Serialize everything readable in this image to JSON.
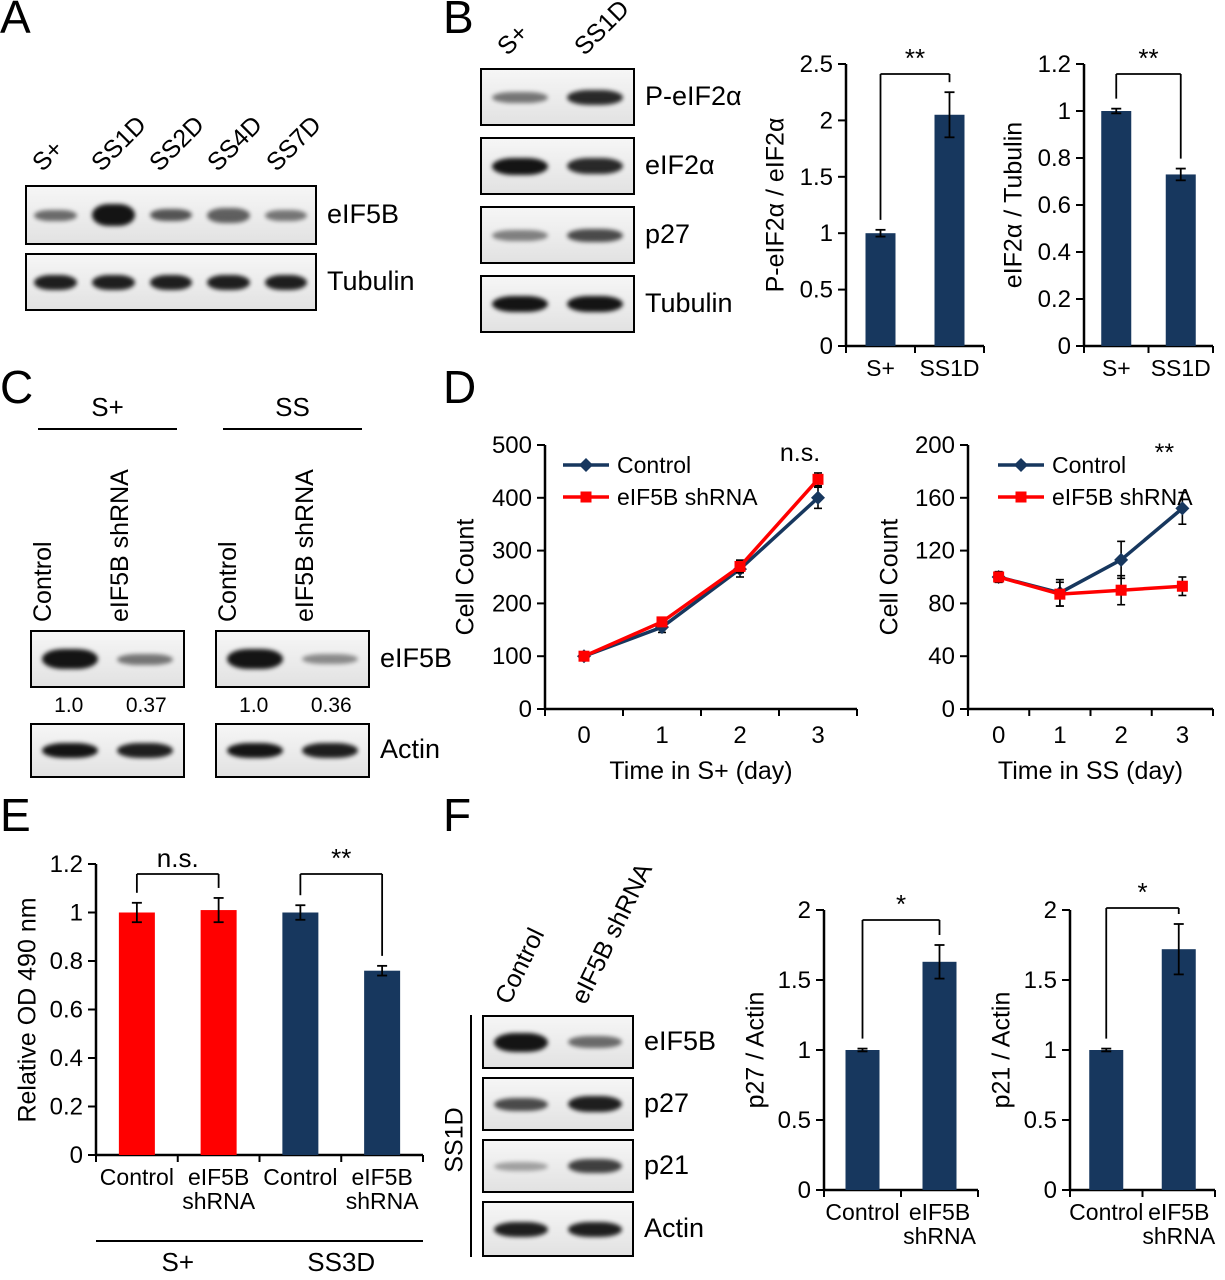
{
  "colors": {
    "navy": "#17375e",
    "red": "#ff0000",
    "black": "#000000"
  },
  "panels": {
    "A": {
      "letter": "A",
      "lanes": [
        "S+",
        "SS1D",
        "SS2D",
        "SS4D",
        "SS7D"
      ],
      "blots": [
        {
          "label": "eIF5B",
          "intensities": [
            0.6,
            1,
            0.7,
            0.65,
            0.55
          ],
          "heights": [
            11,
            22,
            12,
            15,
            11
          ]
        },
        {
          "label": "Tubulin",
          "intensities": [
            0.95,
            0.95,
            0.95,
            0.95,
            0.95
          ],
          "heights": [
            15,
            15,
            15,
            15,
            15
          ]
        }
      ]
    },
    "B": {
      "letter": "B",
      "lanes": [
        "S+",
        "SS1D"
      ],
      "blots": [
        {
          "label": "P-eIF2α",
          "intensities": [
            0.55,
            0.9
          ],
          "heights": [
            11,
            15
          ]
        },
        {
          "label": "eIF2α",
          "intensities": [
            1,
            0.9
          ],
          "heights": [
            17,
            16
          ]
        },
        {
          "label": "p27",
          "intensities": [
            0.5,
            0.75
          ],
          "heights": [
            11,
            13
          ]
        },
        {
          "label": "Tubulin",
          "intensities": [
            1,
            1
          ],
          "heights": [
            16,
            16
          ]
        }
      ]
    },
    "C": {
      "letter": "C",
      "blot_labels": [
        "eIF5B",
        "Actin"
      ],
      "groups": [
        {
          "title": "S+",
          "lanes": [
            "Control",
            "eIF5B shRNA"
          ],
          "quant": [
            "1.0",
            "0.37"
          ],
          "eif5b": {
            "label": "eIF5B",
            "intensities": [
              1,
              0.55
            ],
            "heights": [
              20,
              11
            ]
          },
          "actin": {
            "label": "Actin",
            "intensities": [
              1,
              0.95
            ],
            "heights": [
              15,
              15
            ]
          }
        },
        {
          "title": "SS",
          "lanes": [
            "Control",
            "eIF5B shRNA"
          ],
          "quant": [
            "1.0",
            "0.36"
          ],
          "eif5b": {
            "label": "eIF5B",
            "intensities": [
              1,
              0.45
            ],
            "heights": [
              20,
              10
            ]
          },
          "actin": {
            "label": "Actin",
            "intensities": [
              1,
              0.95
            ],
            "heights": [
              15,
              15
            ]
          }
        }
      ]
    },
    "D": {
      "letter": "D"
    },
    "E": {
      "letter": "E"
    },
    "F": {
      "letter": "F",
      "side_label": "SS1D",
      "lanes": [
        "Control",
        "eIF5B shRNA"
      ],
      "blots": [
        {
          "label": "eIF5B",
          "intensities": [
            1,
            0.6
          ],
          "heights": [
            19,
            12
          ]
        },
        {
          "label": "p27",
          "intensities": [
            0.75,
            0.95
          ],
          "heights": [
            13,
            16
          ]
        },
        {
          "label": "p21",
          "intensities": [
            0.35,
            0.8
          ],
          "heights": [
            9,
            14
          ]
        },
        {
          "label": "Actin",
          "intensities": [
            0.95,
            0.95
          ],
          "heights": [
            15,
            15
          ]
        }
      ]
    }
  },
  "chart_data": [
    {
      "id": "B1",
      "type": "bar",
      "categories": [
        "S+",
        "SS1D"
      ],
      "values": [
        1.0,
        2.05
      ],
      "errors": [
        0.03,
        0.2
      ],
      "ylabel": "P-eIF2α / eIF2α",
      "ylim": [
        0,
        2.5
      ],
      "yticks": [
        0,
        0.5,
        1,
        1.5,
        2,
        2.5
      ],
      "bar_color": "#17375e",
      "sigs": [
        {
          "label": "**",
          "a": 0,
          "b": 1
        }
      ]
    },
    {
      "id": "B2",
      "type": "bar",
      "categories": [
        "S+",
        "SS1D"
      ],
      "values": [
        1.0,
        0.73
      ],
      "errors": [
        0.01,
        0.025
      ],
      "ylabel": "eIF2α / Tubulin",
      "ylim": [
        0,
        1.2
      ],
      "yticks": [
        0,
        0.2,
        0.4,
        0.6,
        0.8,
        1,
        1.2
      ],
      "bar_color": "#17375e",
      "sigs": [
        {
          "label": "**",
          "a": 0,
          "b": 1
        }
      ]
    },
    {
      "id": "D1",
      "type": "line",
      "x": [
        0,
        1,
        2,
        3
      ],
      "xlabel": "Time in S+ (day)",
      "ylabel": "Cell Count",
      "ylim": [
        0,
        500
      ],
      "yticks": [
        0,
        100,
        200,
        300,
        400,
        500
      ],
      "series": [
        {
          "name": "Control",
          "color": "#17375e",
          "marker": "diamond",
          "values": [
            100,
            155,
            265,
            400
          ],
          "errors": [
            5,
            10,
            15,
            20
          ]
        },
        {
          "name": "eIF5B shRNA",
          "color": "#ff0000",
          "marker": "square",
          "values": [
            100,
            165,
            270,
            435
          ],
          "errors": [
            5,
            8,
            12,
            12
          ]
        }
      ],
      "annotation": "n.s."
    },
    {
      "id": "D2",
      "type": "line",
      "x": [
        0,
        1,
        2,
        3
      ],
      "xlabel": "Time in SS (day)",
      "ylabel": "Cell Count",
      "ylim": [
        0,
        200
      ],
      "yticks": [
        0,
        40,
        80,
        120,
        160,
        200
      ],
      "series": [
        {
          "name": "Control",
          "color": "#17375e",
          "marker": "diamond",
          "values": [
            100,
            88,
            113,
            152
          ],
          "errors": [
            4,
            10,
            14,
            12
          ]
        },
        {
          "name": "eIF5B shRNA",
          "color": "#ff0000",
          "marker": "square",
          "values": [
            100,
            87,
            90,
            93
          ],
          "errors": [
            4,
            9,
            11,
            7
          ]
        }
      ],
      "annotation": "**"
    },
    {
      "id": "E",
      "type": "bar",
      "categories": [
        "Control",
        "eIF5B\nshRNA",
        "Control",
        "eIF5B\nshRNA"
      ],
      "values": [
        1.0,
        1.01,
        1.0,
        0.76
      ],
      "errors": [
        0.04,
        0.05,
        0.03,
        0.02
      ],
      "colors": [
        "#ff0000",
        "#ff0000",
        "#17375e",
        "#17375e"
      ],
      "ylabel": "Relative OD 490 nm",
      "ylim": [
        0,
        1.2
      ],
      "yticks": [
        0,
        0.2,
        0.4,
        0.6,
        0.8,
        1,
        1.2
      ],
      "groups": [
        {
          "label": "S+",
          "from": 0,
          "to": 1
        },
        {
          "label": "SS3D",
          "from": 2,
          "to": 3
        }
      ],
      "sigs": [
        {
          "label": "n.s.",
          "a": 0,
          "b": 1
        },
        {
          "label": "**",
          "a": 2,
          "b": 3
        }
      ]
    },
    {
      "id": "F1",
      "type": "bar",
      "categories": [
        "Control",
        "eIF5B\nshRNA"
      ],
      "values": [
        1.0,
        1.63
      ],
      "errors": [
        0.01,
        0.12
      ],
      "ylabel": "p27 / Actin",
      "ylim": [
        0,
        2
      ],
      "yticks": [
        0,
        0.5,
        1,
        1.5,
        2
      ],
      "bar_color": "#17375e",
      "sigs": [
        {
          "label": "*",
          "a": 0,
          "b": 1
        }
      ]
    },
    {
      "id": "F2",
      "type": "bar",
      "categories": [
        "Control",
        "eIF5B\nshRNA"
      ],
      "values": [
        1.0,
        1.72
      ],
      "errors": [
        0.01,
        0.18
      ],
      "ylabel": "p21 / Actin",
      "ylim": [
        0,
        2
      ],
      "yticks": [
        0,
        0.5,
        1,
        1.5,
        2
      ],
      "bar_color": "#17375e",
      "sigs": [
        {
          "label": "*",
          "a": 0,
          "b": 1
        }
      ]
    }
  ]
}
